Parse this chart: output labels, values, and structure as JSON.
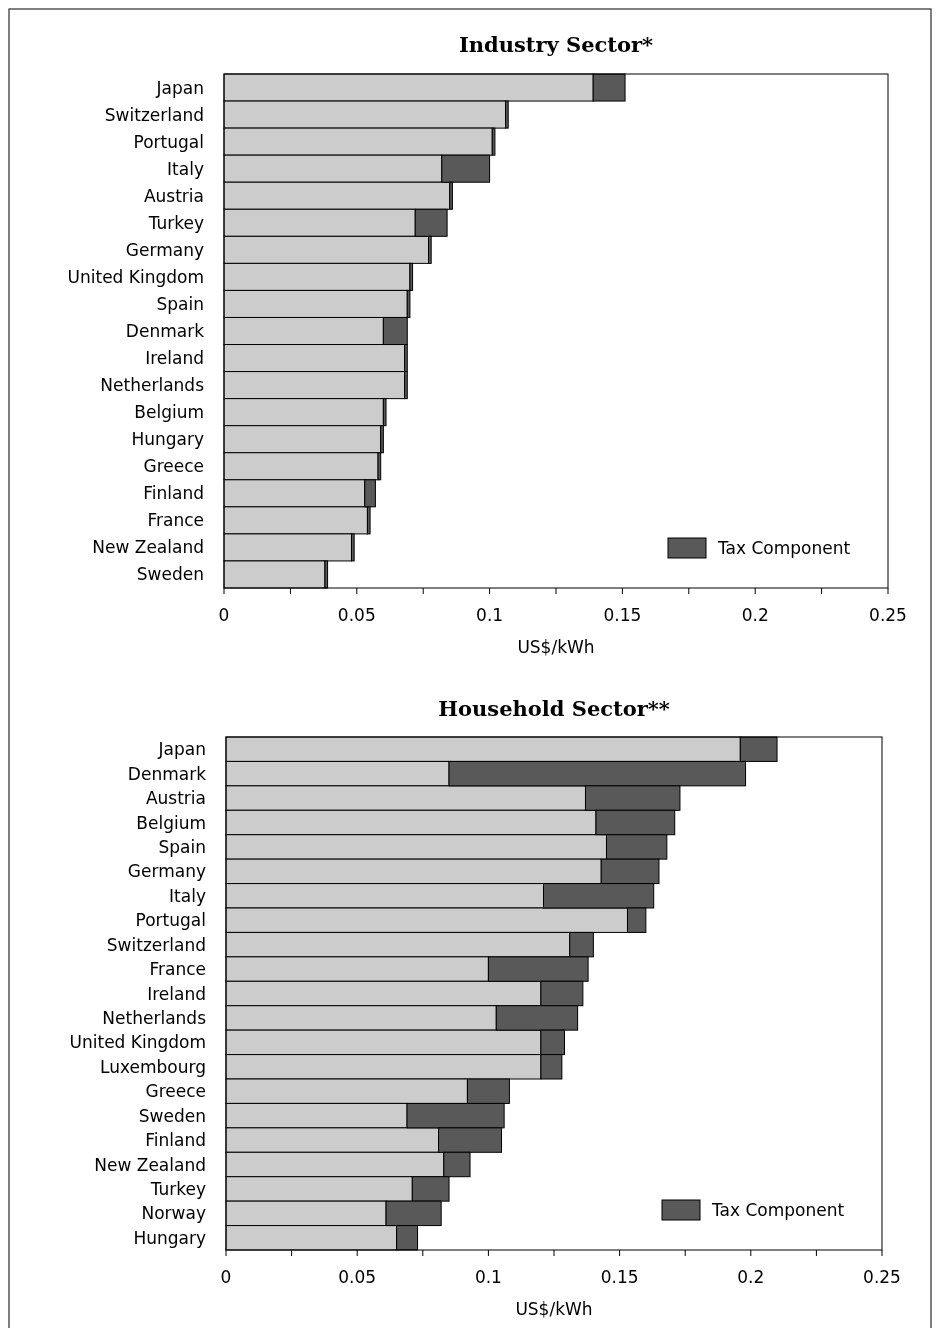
{
  "chart_data": [
    {
      "type": "bar",
      "title": "Industry Sector*",
      "xlabel": "US$/kWh",
      "orientation": "horizontal",
      "stacked": true,
      "legend": "bottom right",
      "grid": false,
      "categories": [
        "Japan",
        "Switzerland",
        "Portugal",
        "Italy",
        "Austria",
        "Turkey",
        "Germany",
        "United Kingdom",
        "Spain",
        "Denmark",
        "Ireland",
        "Netherlands",
        "Belgium",
        "Hungary",
        "Greece",
        "Finland",
        "France",
        "New Zealand",
        "Sweden"
      ],
      "xlim": [
        0,
        0.25
      ],
      "xticks": [
        0,
        {
          "value": 0.025,
          "label": null
        },
        0.05,
        {
          "value": 0.075,
          "label": null
        },
        0.1,
        {
          "value": 0.125,
          "label": null
        },
        0.15,
        {
          "value": 0.175,
          "label": null
        },
        0.2,
        {
          "value": 0.225,
          "label": null
        },
        0.25
      ],
      "series": [
        {
          "color": "#cccccc",
          "values": [
            0.139,
            0.106,
            0.101,
            0.082,
            0.085,
            0.072,
            0.077,
            0.07,
            0.069,
            0.06,
            0.068,
            0.068,
            0.06,
            0.059,
            0.058,
            0.053,
            0.054,
            0.048,
            0.038
          ]
        },
        {
          "name": "Tax Component",
          "color": "#595959",
          "values": [
            0.012,
            0.001,
            0.001,
            0.018,
            0.001,
            0.012,
            0.001,
            0.001,
            0.001,
            0.009,
            0.001,
            0.001,
            0.001,
            0.001,
            0.001,
            0.004,
            0.001,
            0.001,
            0.001
          ]
        }
      ]
    },
    {
      "type": "bar",
      "title": "Household Sector**",
      "xlabel": "US$/kWh",
      "orientation": "horizontal",
      "stacked": true,
      "legend": "bottom right",
      "grid": false,
      "categories": [
        "Japan",
        "Denmark",
        "Austria",
        "Belgium",
        "Spain",
        "Germany",
        "Italy",
        "Portugal",
        "Switzerland",
        "France",
        "Ireland",
        "Netherlands",
        "United Kingdom",
        "Luxembourg",
        "Greece",
        "Sweden",
        "Finland",
        "New Zealand",
        "Turkey",
        "Norway",
        "Hungary"
      ],
      "xlim": [
        0,
        0.25
      ],
      "xticks": [
        0,
        {
          "value": 0.025,
          "label": null
        },
        0.05,
        {
          "value": 0.075,
          "label": null
        },
        0.1,
        {
          "value": 0.125,
          "label": null
        },
        0.15,
        {
          "value": 0.175,
          "label": null
        },
        0.2,
        {
          "value": 0.225,
          "label": null
        },
        0.25
      ],
      "series": [
        {
          "color": "#cccccc",
          "values": [
            0.196,
            0.085,
            0.137,
            0.141,
            0.145,
            0.143,
            0.121,
            0.153,
            0.131,
            0.1,
            0.12,
            0.103,
            0.12,
            0.12,
            0.092,
            0.069,
            0.081,
            0.083,
            0.071,
            0.061,
            0.065
          ]
        },
        {
          "name": "Tax Component",
          "color": "#595959",
          "values": [
            0.014,
            0.113,
            0.036,
            0.03,
            0.023,
            0.022,
            0.042,
            0.007,
            0.009,
            0.038,
            0.016,
            0.031,
            0.009,
            0.008,
            0.016,
            0.037,
            0.024,
            0.01,
            0.014,
            0.021,
            0.008
          ]
        }
      ]
    }
  ]
}
